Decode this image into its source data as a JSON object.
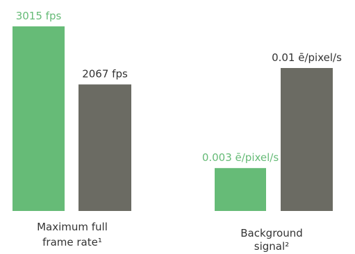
{
  "chart_data": [
    {
      "type": "bar",
      "categories": [
        "Maximum full frame rate¹"
      ],
      "series": [
        {
          "values": [
            3015
          ],
          "color": "#66bb77"
        },
        {
          "values": [
            2067
          ],
          "color": "#6b6b63"
        }
      ],
      "value_labels": [
        "3015 fps",
        "2067 fps"
      ],
      "category_label_lines": [
        "Maximum full",
        "frame rate¹"
      ],
      "units": "fps"
    },
    {
      "type": "bar",
      "categories": [
        "Background signal²"
      ],
      "series": [
        {
          "values": [
            0.003
          ],
          "color": "#66bb77"
        },
        {
          "values": [
            0.01
          ],
          "color": "#6b6b63"
        }
      ],
      "value_labels": [
        "0.003 ē/pixel/s",
        "0.01 ē/pixel/s"
      ],
      "category_label_lines": [
        "Background",
        "signal²"
      ],
      "units": "ē/pixel/s"
    }
  ],
  "colors": {
    "highlight": "#66bb77",
    "comparison": "#6b6b63",
    "highlight_label": "#66bb77",
    "comparison_label": "#333333"
  }
}
